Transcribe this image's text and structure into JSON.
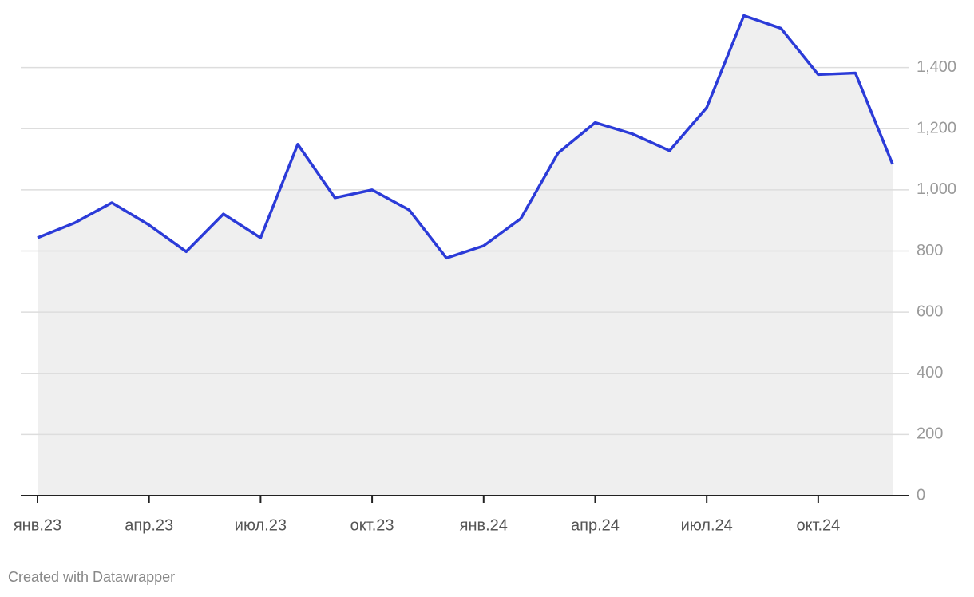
{
  "chart_data": {
    "type": "line",
    "categories": [
      "янв.23",
      null,
      null,
      "апр.23",
      null,
      null,
      "июл.23",
      null,
      null,
      "окт.23",
      null,
      null,
      "янв.24",
      null,
      null,
      "апр.24",
      null,
      null,
      "июл.24",
      null,
      null,
      "окт.24",
      null,
      null
    ],
    "series": [
      {
        "color": "#2b3bd8",
        "values": [
          843,
          892,
          958,
          885,
          798,
          921,
          843,
          1149,
          974,
          1000,
          934,
          777,
          817,
          906,
          1120,
          1220,
          1183,
          1128,
          1269,
          1570,
          1528,
          1377,
          1382,
          1084
        ]
      }
    ],
    "area": true,
    "area_color": "#efefef",
    "ylim": [
      0,
      1600
    ],
    "yticks": [
      0,
      200,
      400,
      600,
      800,
      {
        "value": 1000,
        "label": "1,000"
      },
      {
        "value": 1200,
        "label": "1,200"
      },
      {
        "value": 1400,
        "label": "1,400"
      }
    ],
    "grid": true,
    "footer": "Created with Datawrapper"
  }
}
